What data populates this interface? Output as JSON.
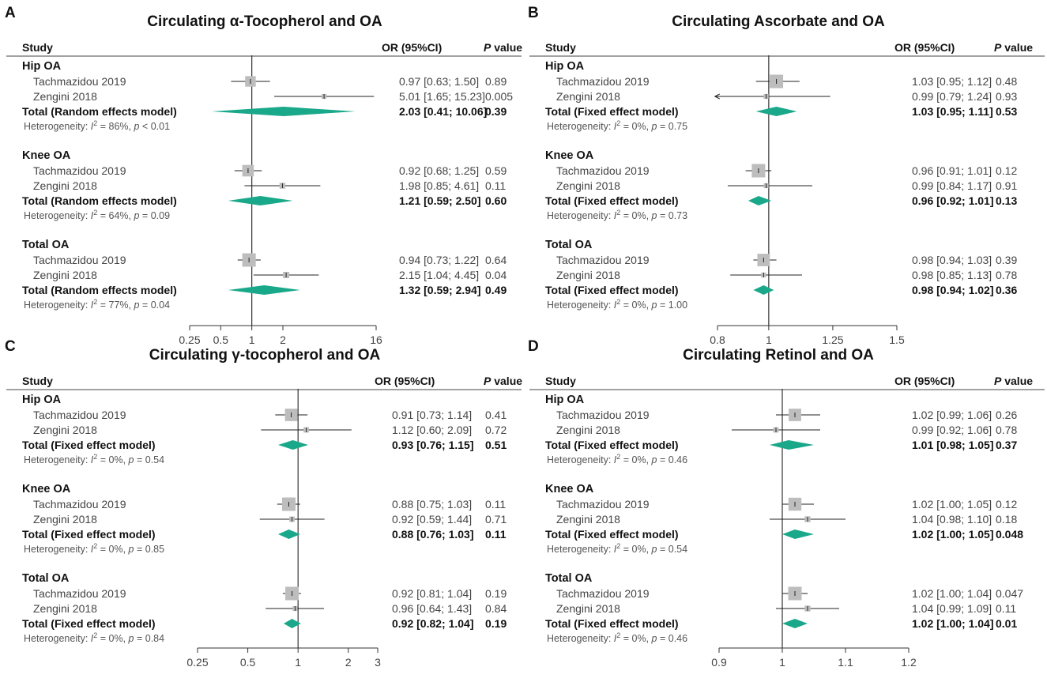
{
  "colors": {
    "diamond": "#1aa88a",
    "box": "#bdbdbd",
    "text": "#1a1a1a"
  },
  "headers": {
    "study": "Study",
    "or": "OR (95%CI)",
    "p_italic": "P",
    "p_rest": " value"
  },
  "chart_data": [
    {
      "type": "forest",
      "letter": "A",
      "title": "Circulating α-Tocopherol and OA",
      "xscale": "log",
      "xlim": [
        0.25,
        16
      ],
      "ticks": [
        0.25,
        0.5,
        1,
        2,
        16
      ],
      "tick_labels": [
        "0.25",
        "0.5",
        "1",
        "2",
        "16"
      ],
      "groups": [
        {
          "name": "Hip OA",
          "studies": [
            {
              "name": "Tachmazidou 2019",
              "or": 0.97,
              "lo": 0.63,
              "hi": 1.5,
              "weight": 0.7,
              "or_text": "0.97 [0.63;  1.50]",
              "p": "0.89"
            },
            {
              "name": "Zengini 2018",
              "or": 5.01,
              "lo": 1.65,
              "hi": 15.23,
              "weight": 0.1,
              "or_text": "5.01 [1.65; 15.23]",
              "p": "0.005"
            }
          ],
          "total": {
            "label": "Total (Random effects model)",
            "or": 2.03,
            "lo": 0.41,
            "hi": 10.06,
            "or_text": "2.03 [0.41; 10.06]",
            "p": "0.39"
          },
          "het": {
            "i2": "86%",
            "p": "< 0.01"
          }
        },
        {
          "name": "Knee OA",
          "studies": [
            {
              "name": "Tachmazidou 2019",
              "or": 0.92,
              "lo": 0.68,
              "hi": 1.25,
              "weight": 0.8,
              "or_text": "0.92 [0.68;  1.25]",
              "p": "0.59"
            },
            {
              "name": "Zengini 2018",
              "or": 1.98,
              "lo": 0.85,
              "hi": 4.61,
              "weight": 0.2,
              "or_text": "1.98 [0.85;  4.61]",
              "p": "0.11"
            }
          ],
          "total": {
            "label": "Total (Random effects model)",
            "or": 1.21,
            "lo": 0.59,
            "hi": 2.5,
            "or_text": "1.21 [0.59;  2.50]",
            "p": "0.60"
          },
          "het": {
            "i2": "64%",
            "p": "= 0.09"
          }
        },
        {
          "name": "Total OA",
          "studies": [
            {
              "name": "Tachmazidou 2019",
              "or": 0.94,
              "lo": 0.73,
              "hi": 1.22,
              "weight": 1.0,
              "or_text": "0.94 [0.73;  1.22]",
              "p": "0.64"
            },
            {
              "name": "Zengini 2018",
              "or": 2.15,
              "lo": 1.04,
              "hi": 4.45,
              "weight": 0.25,
              "or_text": "2.15 [1.04;  4.45]",
              "p": "0.04"
            }
          ],
          "total": {
            "label": "Total (Random effects model)",
            "or": 1.32,
            "lo": 0.59,
            "hi": 2.94,
            "or_text": "1.32 [0.59;  2.94]",
            "p": "0.49"
          },
          "het": {
            "i2": "77%",
            "p": "= 0.04"
          }
        }
      ]
    },
    {
      "type": "forest",
      "letter": "B",
      "title": "Circulating Ascorbate and OA",
      "xscale": "linear",
      "xlim": [
        0.8,
        1.5
      ],
      "ticks": [
        0.8,
        1,
        1.25,
        1.5
      ],
      "tick_labels": [
        "0.8",
        "1",
        "1.25",
        "1.5"
      ],
      "groups": [
        {
          "name": "Hip OA",
          "studies": [
            {
              "name": "Tachmazidou 2019",
              "or": 1.03,
              "lo": 0.95,
              "hi": 1.12,
              "weight": 1.0,
              "or_text": "1.03 [0.95; 1.12]",
              "p": "0.48"
            },
            {
              "name": "Zengini 2018",
              "or": 0.99,
              "lo": 0.79,
              "hi": 1.24,
              "weight": 0.1,
              "or_text": "0.99 [0.79; 1.24]",
              "p": "0.93"
            }
          ],
          "total": {
            "label": "Total (Fixed effect model)",
            "or": 1.03,
            "lo": 0.95,
            "hi": 1.11,
            "or_text": "1.03 [0.95; 1.11]",
            "p": "0.53"
          },
          "het": {
            "i2": "0%",
            "p": "= 0.75"
          }
        },
        {
          "name": "Knee OA",
          "studies": [
            {
              "name": "Tachmazidou 2019",
              "or": 0.96,
              "lo": 0.91,
              "hi": 1.01,
              "weight": 1.0,
              "or_text": "0.96 [0.91; 1.01]",
              "p": "0.12"
            },
            {
              "name": "Zengini 2018",
              "or": 0.99,
              "lo": 0.84,
              "hi": 1.17,
              "weight": 0.1,
              "or_text": "0.99 [0.84; 1.17]",
              "p": "0.91"
            }
          ],
          "total": {
            "label": "Total (Fixed effect model)",
            "or": 0.96,
            "lo": 0.92,
            "hi": 1.01,
            "or_text": "0.96 [0.92; 1.01]",
            "p": "0.13"
          },
          "het": {
            "i2": "0%",
            "p": "= 0.73"
          }
        },
        {
          "name": "Total OA",
          "studies": [
            {
              "name": "Tachmazidou 2019",
              "or": 0.98,
              "lo": 0.94,
              "hi": 1.03,
              "weight": 0.9,
              "or_text": "0.98 [0.94; 1.03]",
              "p": "0.39"
            },
            {
              "name": "Zengini 2018",
              "or": 0.98,
              "lo": 0.85,
              "hi": 1.13,
              "weight": 0.1,
              "or_text": "0.98 [0.85; 1.13]",
              "p": "0.78"
            }
          ],
          "total": {
            "label": "Total (Fixed effect model)",
            "or": 0.98,
            "lo": 0.94,
            "hi": 1.02,
            "or_text": "0.98 [0.94; 1.02]",
            "p": "0.36"
          },
          "het": {
            "i2": "0%",
            "p": "= 1.00"
          }
        }
      ]
    },
    {
      "type": "forest",
      "letter": "C",
      "title": "Circulating γ-tocopherol and OA",
      "xscale": "log",
      "xlim": [
        0.25,
        3
      ],
      "ticks": [
        0.25,
        0.5,
        1,
        2,
        3
      ],
      "tick_labels": [
        "0.25",
        "0.5",
        "1",
        "2",
        "3"
      ],
      "groups": [
        {
          "name": "Hip OA",
          "studies": [
            {
              "name": "Tachmazidou 2019",
              "or": 0.91,
              "lo": 0.73,
              "hi": 1.14,
              "weight": 0.9,
              "or_text": "0.91 [0.73; 1.14]",
              "p": "0.41"
            },
            {
              "name": "Zengini 2018",
              "or": 1.12,
              "lo": 0.6,
              "hi": 2.09,
              "weight": 0.15,
              "or_text": "1.12 [0.60; 2.09]",
              "p": "0.72"
            }
          ],
          "total": {
            "label": "Total (Fixed effect model)",
            "or": 0.93,
            "lo": 0.76,
            "hi": 1.15,
            "or_text": "0.93 [0.76; 1.15]",
            "p": "0.51"
          },
          "het": {
            "i2": "0%",
            "p": "= 0.54"
          }
        },
        {
          "name": "Knee OA",
          "studies": [
            {
              "name": "Tachmazidou 2019",
              "or": 0.88,
              "lo": 0.75,
              "hi": 1.03,
              "weight": 1.0,
              "or_text": "0.88 [0.75; 1.03]",
              "p": "0.11"
            },
            {
              "name": "Zengini 2018",
              "or": 0.92,
              "lo": 0.59,
              "hi": 1.44,
              "weight": 0.15,
              "or_text": "0.92 [0.59; 1.44]",
              "p": "0.71"
            }
          ],
          "total": {
            "label": "Total (Fixed effect model)",
            "or": 0.88,
            "lo": 0.76,
            "hi": 1.03,
            "or_text": "0.88 [0.76; 1.03]",
            "p": "0.11"
          },
          "het": {
            "i2": "0%",
            "p": "= 0.85"
          }
        },
        {
          "name": "Total OA",
          "studies": [
            {
              "name": "Tachmazidou 2019",
              "or": 0.92,
              "lo": 0.81,
              "hi": 1.04,
              "weight": 1.0,
              "or_text": "0.92 [0.81; 1.04]",
              "p": "0.19"
            },
            {
              "name": "Zengini 2018",
              "or": 0.96,
              "lo": 0.64,
              "hi": 1.43,
              "weight": 0.1,
              "or_text": "0.96 [0.64; 1.43]",
              "p": "0.84"
            }
          ],
          "total": {
            "label": "Total (Fixed effect model)",
            "or": 0.92,
            "lo": 0.82,
            "hi": 1.04,
            "or_text": "0.92 [0.82; 1.04]",
            "p": "0.19"
          },
          "het": {
            "i2": "0%",
            "p": "= 0.84"
          }
        }
      ]
    },
    {
      "type": "forest",
      "letter": "D",
      "title": "Circulating Retinol and OA",
      "xscale": "linear",
      "xlim": [
        0.9,
        1.2
      ],
      "ticks": [
        0.9,
        1,
        1.1,
        1.2
      ],
      "tick_labels": [
        "0.9",
        "1",
        "1.1",
        "1.2"
      ],
      "groups": [
        {
          "name": "Hip OA",
          "studies": [
            {
              "name": "Tachmazidou 2019",
              "or": 1.02,
              "lo": 0.99,
              "hi": 1.06,
              "weight": 0.9,
              "or_text": "1.02 [0.99; 1.06]",
              "p": "0.26"
            },
            {
              "name": "Zengini 2018",
              "or": 0.99,
              "lo": 0.92,
              "hi": 1.06,
              "weight": 0.15,
              "or_text": "0.99 [0.92; 1.06]",
              "p": "0.78"
            }
          ],
          "total": {
            "label": "Total (Fixed effect model)",
            "or": 1.01,
            "lo": 0.98,
            "hi": 1.05,
            "or_text": "1.01 [0.98; 1.05]",
            "p": "0.37"
          },
          "het": {
            "i2": "0%",
            "p": "= 0.46"
          }
        },
        {
          "name": "Knee OA",
          "studies": [
            {
              "name": "Tachmazidou 2019",
              "or": 1.02,
              "lo": 1.0,
              "hi": 1.05,
              "weight": 0.95,
              "or_text": "1.02 [1.00; 1.05]",
              "p": "0.12"
            },
            {
              "name": "Zengini 2018",
              "or": 1.04,
              "lo": 0.98,
              "hi": 1.1,
              "weight": 0.2,
              "or_text": "1.04 [0.98; 1.10]",
              "p": "0.18"
            }
          ],
          "total": {
            "label": "Total (Fixed effect model)",
            "or": 1.02,
            "lo": 1.0,
            "hi": 1.05,
            "or_text": "1.02 [1.00; 1.05]",
            "p": "0.048"
          },
          "het": {
            "i2": "0%",
            "p": "= 0.54"
          }
        },
        {
          "name": "Total OA",
          "studies": [
            {
              "name": "Tachmazidou 2019",
              "or": 1.02,
              "lo": 1.0,
              "hi": 1.04,
              "weight": 1.0,
              "or_text": "1.02 [1.00; 1.04]",
              "p": "0.047"
            },
            {
              "name": "Zengini 2018",
              "or": 1.04,
              "lo": 0.99,
              "hi": 1.09,
              "weight": 0.2,
              "or_text": "1.04 [0.99; 1.09]",
              "p": "0.11"
            }
          ],
          "total": {
            "label": "Total (Fixed effect model)",
            "or": 1.02,
            "lo": 1.0,
            "hi": 1.04,
            "or_text": "1.02 [1.00; 1.04]",
            "p": "0.01"
          },
          "het": {
            "i2": "0%",
            "p": "= 0.46"
          }
        }
      ]
    }
  ]
}
